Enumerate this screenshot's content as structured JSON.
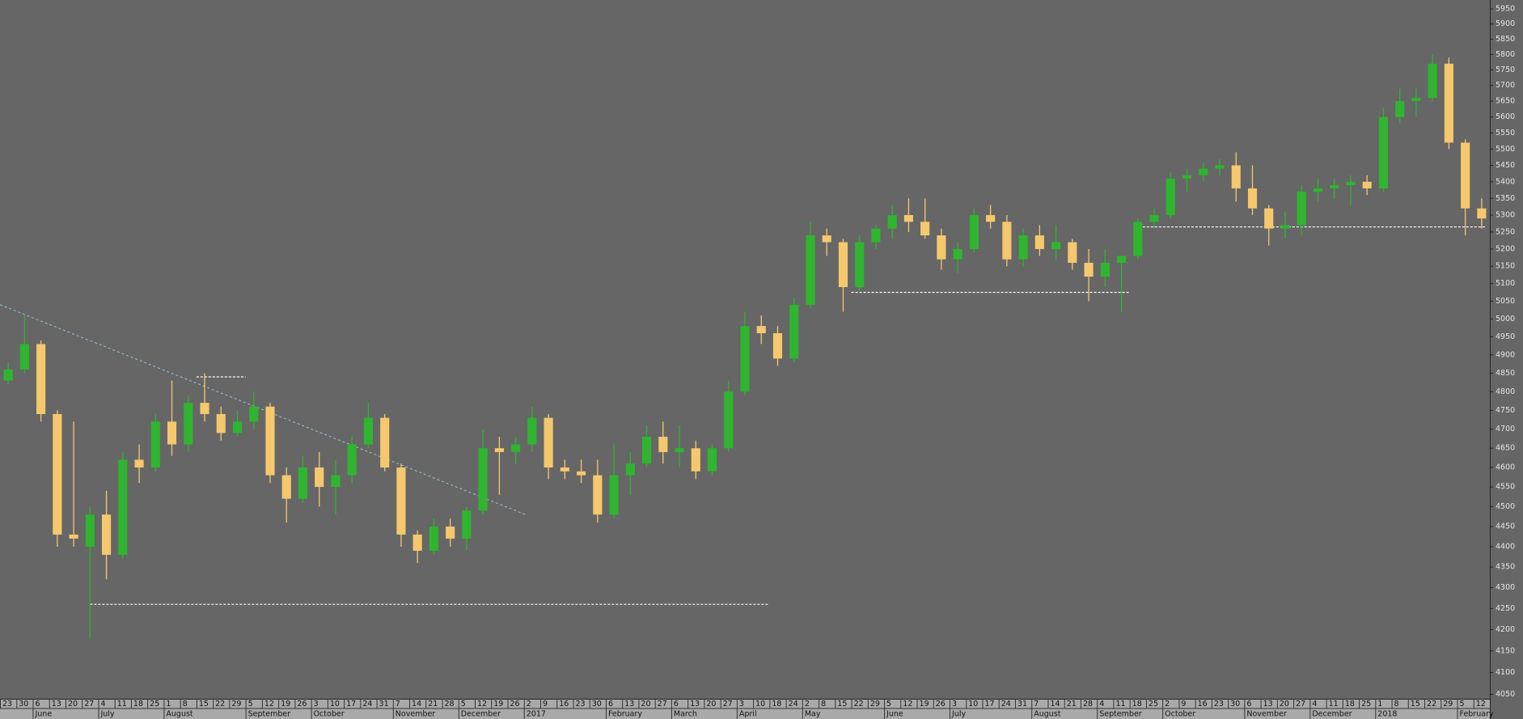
{
  "chart_data": {
    "type": "candlestick",
    "log_scale": true,
    "up_color": "#2fb52f",
    "down_color": "#f5c86e",
    "categories": [
      "23",
      "30",
      "6",
      "13",
      "20",
      "27",
      "4",
      "11",
      "18",
      "25",
      "1",
      "8",
      "15",
      "22",
      "29",
      "5",
      "12",
      "19",
      "26",
      "3",
      "10",
      "17",
      "24",
      "31",
      "7",
      "14",
      "21",
      "28",
      "5",
      "12",
      "19",
      "26",
      "2",
      "9",
      "16",
      "23",
      "30",
      "6",
      "13",
      "20",
      "27",
      "6",
      "13",
      "20",
      "27",
      "3",
      "10",
      "18",
      "24",
      "2",
      "8",
      "15",
      "22",
      "29",
      "5",
      "12",
      "19",
      "26",
      "3",
      "10",
      "17",
      "24",
      "31",
      "7",
      "14",
      "21",
      "28",
      "4",
      "11",
      "18",
      "25",
      "2",
      "9",
      "16",
      "23",
      "30",
      "6",
      "13",
      "20",
      "27",
      "4",
      "11",
      "18",
      "25",
      "1",
      "8",
      "15",
      "22",
      "29",
      "5",
      "12"
    ],
    "months": [
      null,
      null,
      "June",
      null,
      null,
      null,
      "July",
      null,
      null,
      null,
      "August",
      null,
      null,
      null,
      null,
      "September",
      null,
      null,
      null,
      "October",
      null,
      null,
      null,
      null,
      "November",
      null,
      null,
      null,
      "December",
      null,
      null,
      null,
      "2017",
      null,
      null,
      null,
      null,
      "February",
      null,
      null,
      null,
      "March",
      null,
      null,
      null,
      "April",
      null,
      null,
      null,
      "May",
      null,
      null,
      null,
      null,
      "June",
      null,
      null,
      null,
      "July",
      null,
      null,
      null,
      null,
      "August",
      null,
      null,
      null,
      "September",
      null,
      null,
      null,
      "October",
      null,
      null,
      null,
      null,
      "November",
      null,
      null,
      null,
      "December",
      null,
      null,
      null,
      "2018",
      null,
      null,
      null,
      null,
      "February",
      null
    ],
    "open": [
      4830,
      4860,
      4930,
      4740,
      4430,
      4400,
      4480,
      4380,
      4620,
      4600,
      4720,
      4660,
      4770,
      4740,
      4690,
      4720,
      4760,
      4580,
      4520,
      4600,
      4550,
      4580,
      4660,
      4730,
      4600,
      4430,
      4390,
      4450,
      4420,
      4490,
      4650,
      4640,
      4660,
      4730,
      4600,
      4590,
      4580,
      4480,
      4580,
      4610,
      4680,
      4640,
      4650,
      4590,
      4650,
      4800,
      4980,
      4960,
      4890,
      5040,
      5240,
      5220,
      5090,
      5220,
      5260,
      5300,
      5280,
      5240,
      5170,
      5200,
      5300,
      5280,
      5170,
      5240,
      5200,
      5220,
      5160,
      5120,
      5160,
      5180,
      5280,
      5300,
      5410,
      5420,
      5440,
      5450,
      5380,
      5320,
      5260,
      5270,
      5370,
      5380,
      5390,
      5400,
      5380,
      5600,
      5650,
      5660,
      5770,
      5520,
      5320
    ],
    "high": [
      4880,
      5010,
      4940,
      4750,
      4720,
      4500,
      4540,
      4640,
      4660,
      4740,
      4830,
      4790,
      4850,
      4760,
      4750,
      4800,
      4770,
      4600,
      4630,
      4640,
      4620,
      4680,
      4770,
      4740,
      4610,
      4440,
      4470,
      4470,
      4500,
      4700,
      4680,
      4680,
      4760,
      4740,
      4620,
      4620,
      4620,
      4660,
      4640,
      4710,
      4720,
      4710,
      4670,
      4660,
      4830,
      5020,
      5010,
      4980,
      5060,
      5280,
      5260,
      5230,
      5240,
      5270,
      5330,
      5350,
      5350,
      5260,
      5220,
      5320,
      5330,
      5300,
      5260,
      5270,
      5270,
      5230,
      5200,
      5200,
      5180,
      5290,
      5320,
      5430,
      5440,
      5460,
      5470,
      5490,
      5450,
      5330,
      5310,
      5390,
      5410,
      5410,
      5420,
      5420,
      5630,
      5690,
      5690,
      5800,
      5790,
      5530,
      5350
    ],
    "low": [
      4820,
      4850,
      4720,
      4400,
      4400,
      4180,
      4320,
      4370,
      4560,
      4590,
      4630,
      4640,
      4720,
      4670,
      4680,
      4700,
      4560,
      4460,
      4510,
      4500,
      4480,
      4560,
      4650,
      4590,
      4400,
      4360,
      4380,
      4400,
      4390,
      4480,
      4530,
      4610,
      4640,
      4570,
      4570,
      4560,
      4460,
      4470,
      4530,
      4600,
      4610,
      4600,
      4570,
      4580,
      4640,
      4790,
      4930,
      4870,
      4880,
      5030,
      5180,
      5020,
      5080,
      5200,
      5230,
      5250,
      5230,
      5140,
      5130,
      5190,
      5260,
      5150,
      5150,
      5180,
      5170,
      5140,
      5050,
      5090,
      5020,
      5170,
      5260,
      5290,
      5370,
      5400,
      5420,
      5340,
      5300,
      5210,
      5230,
      5240,
      5340,
      5350,
      5330,
      5360,
      5370,
      5580,
      5600,
      5650,
      5500,
      5240,
      5260
    ],
    "close": [
      4860,
      4930,
      4740,
      4430,
      4420,
      4480,
      4380,
      4620,
      4600,
      4720,
      4660,
      4770,
      4740,
      4690,
      4720,
      4760,
      4580,
      4520,
      4600,
      4550,
      4580,
      4660,
      4730,
      4600,
      4430,
      4390,
      4450,
      4420,
      4490,
      4650,
      4640,
      4660,
      4730,
      4600,
      4590,
      4580,
      4480,
      4580,
      4610,
      4680,
      4640,
      4650,
      4590,
      4650,
      4800,
      4980,
      4960,
      4890,
      5040,
      5240,
      5220,
      5090,
      5220,
      5260,
      5300,
      5280,
      5240,
      5170,
      5200,
      5300,
      5280,
      5170,
      5240,
      5200,
      5220,
      5160,
      5120,
      5160,
      5180,
      5280,
      5300,
      5410,
      5420,
      5440,
      5450,
      5380,
      5320,
      5260,
      5270,
      5370,
      5380,
      5390,
      5400,
      5380,
      5600,
      5650,
      5660,
      5770,
      5520,
      5320,
      5290
    ],
    "levels": [
      {
        "value": 4260,
        "from": 5,
        "to": 46.5
      },
      {
        "value": 4840,
        "from": 11.5,
        "to": 14.5
      },
      {
        "value": 5075,
        "from": 51.5,
        "to": 68.5
      },
      {
        "value": 5265,
        "from": 69.3,
        "to": 90.3
      }
    ],
    "level_color": "#ffffff",
    "trendline": {
      "x": [
        -0.5,
        31.6
      ],
      "y": [
        5040,
        4480
      ],
      "color": "#9fc5d8"
    },
    "ylim": [
      4040,
      5980
    ],
    "yticks": [
      4050,
      4100,
      4150,
      4200,
      4250,
      4300,
      4350,
      4400,
      4450,
      4500,
      4550,
      4600,
      4650,
      4700,
      4750,
      4800,
      4850,
      4900,
      4950,
      5000,
      5050,
      5100,
      5150,
      5200,
      5250,
      5300,
      5350,
      5400,
      5450,
      5500,
      5550,
      5600,
      5650,
      5700,
      5750,
      5800,
      5850,
      5900,
      5950
    ]
  }
}
